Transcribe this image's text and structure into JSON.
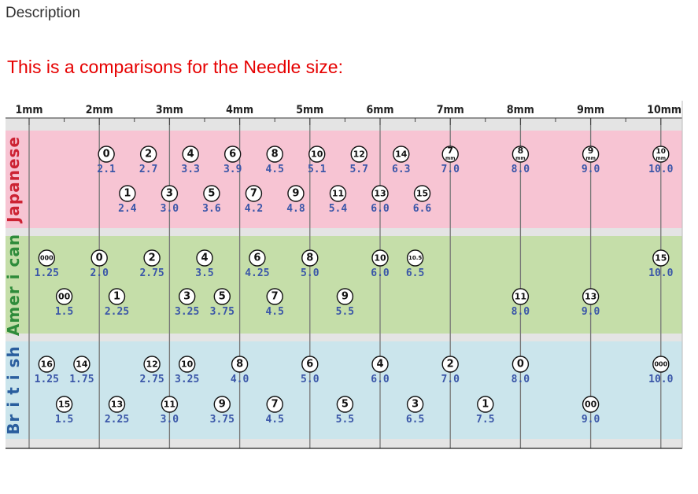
{
  "page": {
    "description_label": "Description",
    "intro_text": "This is a comparisons for the Needle size:"
  },
  "ruler": {
    "labels": [
      "1mm",
      "2mm",
      "3mm",
      "4mm",
      "5mm",
      "6mm",
      "7mm",
      "8mm",
      "9mm",
      "10mm"
    ]
  },
  "colors": {
    "japanese_band": "#f7c4d3",
    "american_band": "#c5dea9",
    "british_band": "#cbe5ec",
    "japanese_label": "#cc2233",
    "american_label": "#2e8b3a",
    "british_label": "#2a5e9e",
    "value_text": "#3a56a8",
    "intro_text": "#e60000"
  },
  "sections": [
    {
      "key": "japanese",
      "label": "Japanese",
      "rows": [
        [
          {
            "size": "0",
            "value": "2.1",
            "mm": 2.1
          },
          {
            "size": "2",
            "value": "2.7",
            "mm": 2.7
          },
          {
            "size": "4",
            "value": "3.3",
            "mm": 3.3
          },
          {
            "size": "6",
            "value": "3.9",
            "mm": 3.9
          },
          {
            "size": "8",
            "value": "4.5",
            "mm": 4.5
          },
          {
            "size": "10",
            "value": "5.1",
            "mm": 5.1
          },
          {
            "size": "12",
            "value": "5.7",
            "mm": 5.7
          },
          {
            "size": "14",
            "value": "6.3",
            "mm": 6.3
          },
          {
            "size": "7",
            "suffix": "mm",
            "value": "7.0",
            "mm": 7.0
          },
          {
            "size": "8",
            "suffix": "mm",
            "value": "8.0",
            "mm": 8.0
          },
          {
            "size": "9",
            "suffix": "mm",
            "value": "9.0",
            "mm": 9.0
          },
          {
            "size": "10",
            "suffix": "mm",
            "value": "10.0",
            "mm": 10.0
          }
        ],
        [
          {
            "size": "1",
            "value": "2.4",
            "mm": 2.4
          },
          {
            "size": "3",
            "value": "3.0",
            "mm": 3.0
          },
          {
            "size": "5",
            "value": "3.6",
            "mm": 3.6
          },
          {
            "size": "7",
            "value": "4.2",
            "mm": 4.2
          },
          {
            "size": "9",
            "value": "4.8",
            "mm": 4.8
          },
          {
            "size": "11",
            "value": "5.4",
            "mm": 5.4
          },
          {
            "size": "13",
            "value": "6.0",
            "mm": 6.0
          },
          {
            "size": "15",
            "value": "6.6",
            "mm": 6.6
          }
        ]
      ]
    },
    {
      "key": "american",
      "label": "Amer i can",
      "rows": [
        [
          {
            "size": "000",
            "value": "1.25",
            "mm": 1.25
          },
          {
            "size": "0",
            "value": "2.0",
            "mm": 2.0
          },
          {
            "size": "2",
            "value": "2.75",
            "mm": 2.75
          },
          {
            "size": "4",
            "value": "3.5",
            "mm": 3.5
          },
          {
            "size": "6",
            "value": "4.25",
            "mm": 4.25
          },
          {
            "size": "8",
            "value": "5.0",
            "mm": 5.0
          },
          {
            "size": "10",
            "value": "6.0",
            "mm": 6.0
          },
          {
            "size": "10.5",
            "value": "6.5",
            "mm": 6.5
          },
          {
            "size": "15",
            "value": "10.0",
            "mm": 10.0
          }
        ],
        [
          {
            "size": "00",
            "value": "1.5",
            "mm": 1.5
          },
          {
            "size": "1",
            "value": "2.25",
            "mm": 2.25
          },
          {
            "size": "3",
            "value": "3.25",
            "mm": 3.25
          },
          {
            "size": "5",
            "value": "3.75",
            "mm": 3.75
          },
          {
            "size": "7",
            "value": "4.5",
            "mm": 4.5
          },
          {
            "size": "9",
            "value": "5.5",
            "mm": 5.5
          },
          {
            "size": "11",
            "value": "8.0",
            "mm": 8.0
          },
          {
            "size": "13",
            "value": "9.0",
            "mm": 9.0
          }
        ]
      ]
    },
    {
      "key": "british",
      "label": "Br i t i sh",
      "rows": [
        [
          {
            "size": "16",
            "value": "1.25",
            "mm": 1.25
          },
          {
            "size": "14",
            "value": "1.75",
            "mm": 1.75
          },
          {
            "size": "12",
            "value": "2.75",
            "mm": 2.75
          },
          {
            "size": "10",
            "value": "3.25",
            "mm": 3.25
          },
          {
            "size": "8",
            "value": "4.0",
            "mm": 4.0
          },
          {
            "size": "6",
            "value": "5.0",
            "mm": 5.0
          },
          {
            "size": "4",
            "value": "6.0",
            "mm": 6.0
          },
          {
            "size": "2",
            "value": "7.0",
            "mm": 7.0
          },
          {
            "size": "0",
            "value": "8.0",
            "mm": 8.0
          },
          {
            "size": "000",
            "value": "10.0",
            "mm": 10.0
          }
        ],
        [
          {
            "size": "15",
            "value": "1.5",
            "mm": 1.5
          },
          {
            "size": "13",
            "value": "2.25",
            "mm": 2.25
          },
          {
            "size": "11",
            "value": "3.0",
            "mm": 3.0
          },
          {
            "size": "9",
            "value": "3.75",
            "mm": 3.75
          },
          {
            "size": "7",
            "value": "4.5",
            "mm": 4.5
          },
          {
            "size": "5",
            "value": "5.5",
            "mm": 5.5
          },
          {
            "size": "3",
            "value": "6.5",
            "mm": 6.5
          },
          {
            "size": "1",
            "value": "7.5",
            "mm": 7.5
          },
          {
            "size": "00",
            "value": "9.0",
            "mm": 9.0
          }
        ]
      ]
    }
  ]
}
